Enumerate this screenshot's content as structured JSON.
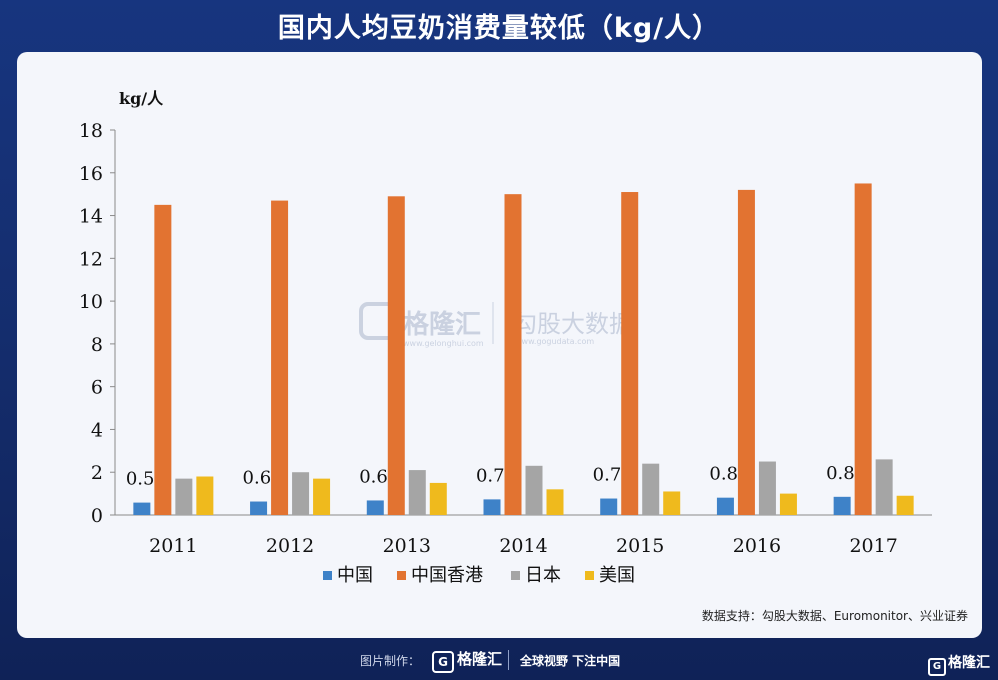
{
  "title": "国内人均豆奶消费量较低（kg/人）",
  "source": "数据支持：勾股大数据、Euromonitor、兴业证券",
  "footer": {
    "made_by": "图片制作：",
    "brand": "格隆汇",
    "brand_icon": "G",
    "slogan": "全球视野 下注中国"
  },
  "corner_brand": "格隆汇",
  "watermark": {
    "left": "格隆汇",
    "left_url": "www.gelonghui.com",
    "right": "勾股大数据",
    "right_url": "www.gogudata.com"
  },
  "chart_data": {
    "type": "bar",
    "ylabel": "kg/人",
    "ylim": [
      0,
      18
    ],
    "yticks": [
      0,
      2,
      4,
      6,
      8,
      10,
      12,
      14,
      16,
      18
    ],
    "categories": [
      "2011",
      "2012",
      "2013",
      "2014",
      "2015",
      "2016",
      "2017"
    ],
    "series": [
      {
        "name": "中国",
        "color": "#3e82c8",
        "values": [
          0.58,
          0.63,
          0.68,
          0.73,
          0.77,
          0.81,
          0.85
        ],
        "labels": [
          "0.58",
          "0.63",
          "0.68",
          "0.73",
          "0.77",
          "0.81",
          "0.85"
        ]
      },
      {
        "name": "中国香港",
        "color": "#e27331",
        "values": [
          14.5,
          14.7,
          14.9,
          15.0,
          15.1,
          15.2,
          15.5
        ]
      },
      {
        "name": "日本",
        "color": "#a5a5a5",
        "values": [
          1.7,
          2.0,
          2.1,
          2.3,
          2.4,
          2.5,
          2.6
        ]
      },
      {
        "name": "美国",
        "color": "#efba1d",
        "values": [
          1.8,
          1.7,
          1.5,
          1.2,
          1.1,
          1.0,
          0.9
        ]
      }
    ],
    "legend_position": "bottom",
    "grid": false
  }
}
